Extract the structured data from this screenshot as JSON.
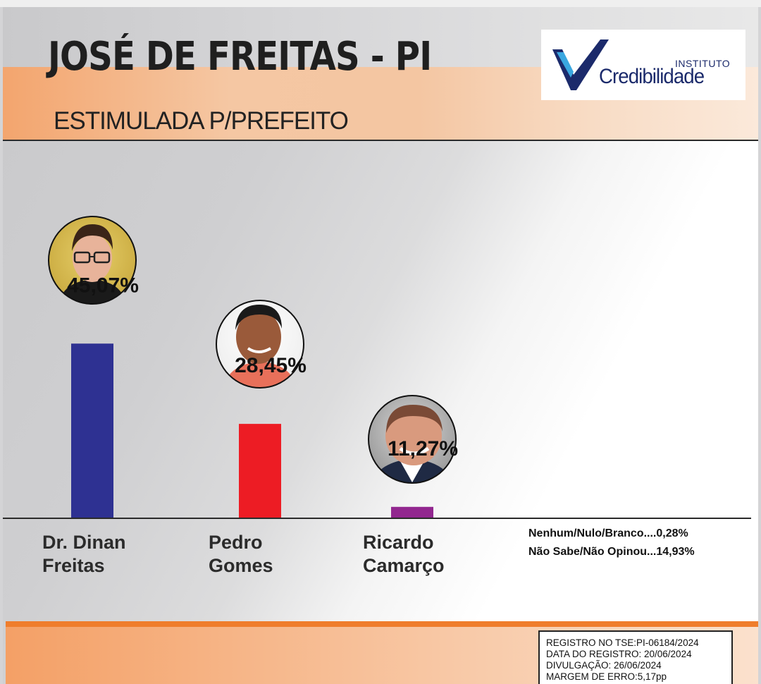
{
  "header": {
    "title": "JOSÉ DE FREITAS - PI",
    "subtitle": "ESTIMULADA P/PREFEITO"
  },
  "logo": {
    "instituto": "INSTITUTO",
    "name": "Credibilidade"
  },
  "chart_data": {
    "type": "bar",
    "categories": [
      "Dr. Dinan Freitas",
      "Pedro Gomes",
      "Ricardo Camarço"
    ],
    "values": [
      45.07,
      28.45,
      11.27
    ],
    "value_labels": [
      "45,07%",
      "28,45%",
      "11,27%"
    ],
    "category_lines": [
      [
        "Dr. Dinan",
        "Freitas"
      ],
      [
        "Pedro",
        "Gomes"
      ],
      [
        "Ricardo",
        "Camarço"
      ]
    ],
    "colors": [
      "#2e3192",
      "#ed1c24",
      "#92278f"
    ],
    "title": "",
    "xlabel": "",
    "ylabel": "",
    "ylim": [
      0,
      50
    ],
    "grid": false
  },
  "others": [
    "Nenhum/Nulo/Branco....0,28%",
    "Não Sabe/Não Opinou...14,93%"
  ],
  "registration": [
    "REGISTRO NO TSE:PI-06184/2024",
    "DATA DO REGISTRO: 20/06/2024",
    "DIVULGAÇÃO: 26/06/2024",
    "MARGEM DE ERRO:5,17pp"
  ],
  "colors": {
    "accent_orange": "#ef7d2c",
    "logo_blue": "#1b2a6b"
  }
}
